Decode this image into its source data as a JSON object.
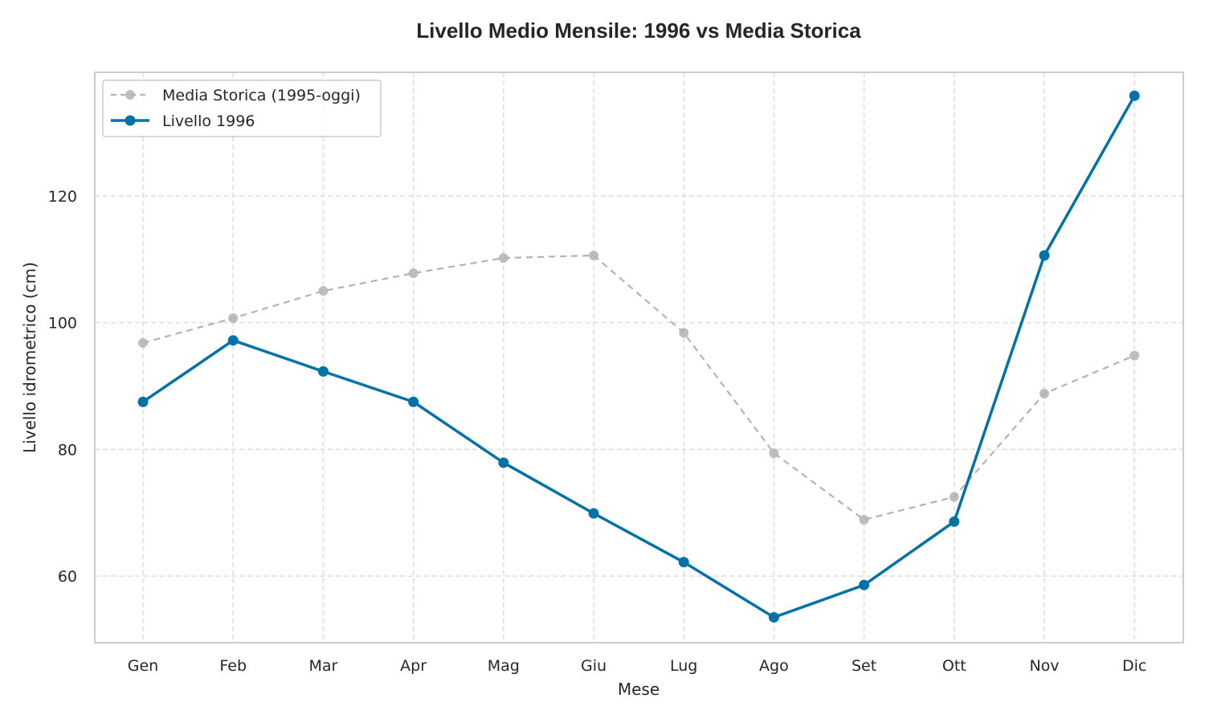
{
  "chart_data": {
    "type": "line",
    "title": "Livello Medio Mensile: 1996 vs Media Storica",
    "xlabel": "Mese",
    "ylabel": "Livello idrometrico (cm)",
    "categories": [
      "Gen",
      "Feb",
      "Mar",
      "Apr",
      "Mag",
      "Giu",
      "Lug",
      "Ago",
      "Set",
      "Ott",
      "Nov",
      "Dic"
    ],
    "ylim": [
      49.5,
      139.5
    ],
    "yticks": [
      60,
      80,
      100,
      120
    ],
    "grid": true,
    "legend_position": "top-left",
    "series": [
      {
        "name": "Media Storica (1995-oggi)",
        "style": "dashed",
        "color": "#b3b3b3",
        "values": [
          96.8,
          100.7,
          105.0,
          107.8,
          110.2,
          110.6,
          98.4,
          79.4,
          68.9,
          72.5,
          88.8,
          94.8
        ]
      },
      {
        "name": "Livello 1996",
        "style": "solid",
        "color": "#0072a8",
        "values": [
          87.5,
          97.2,
          92.3,
          87.5,
          77.9,
          69.9,
          62.2,
          53.5,
          58.6,
          68.6,
          110.6,
          135.8
        ]
      }
    ]
  }
}
